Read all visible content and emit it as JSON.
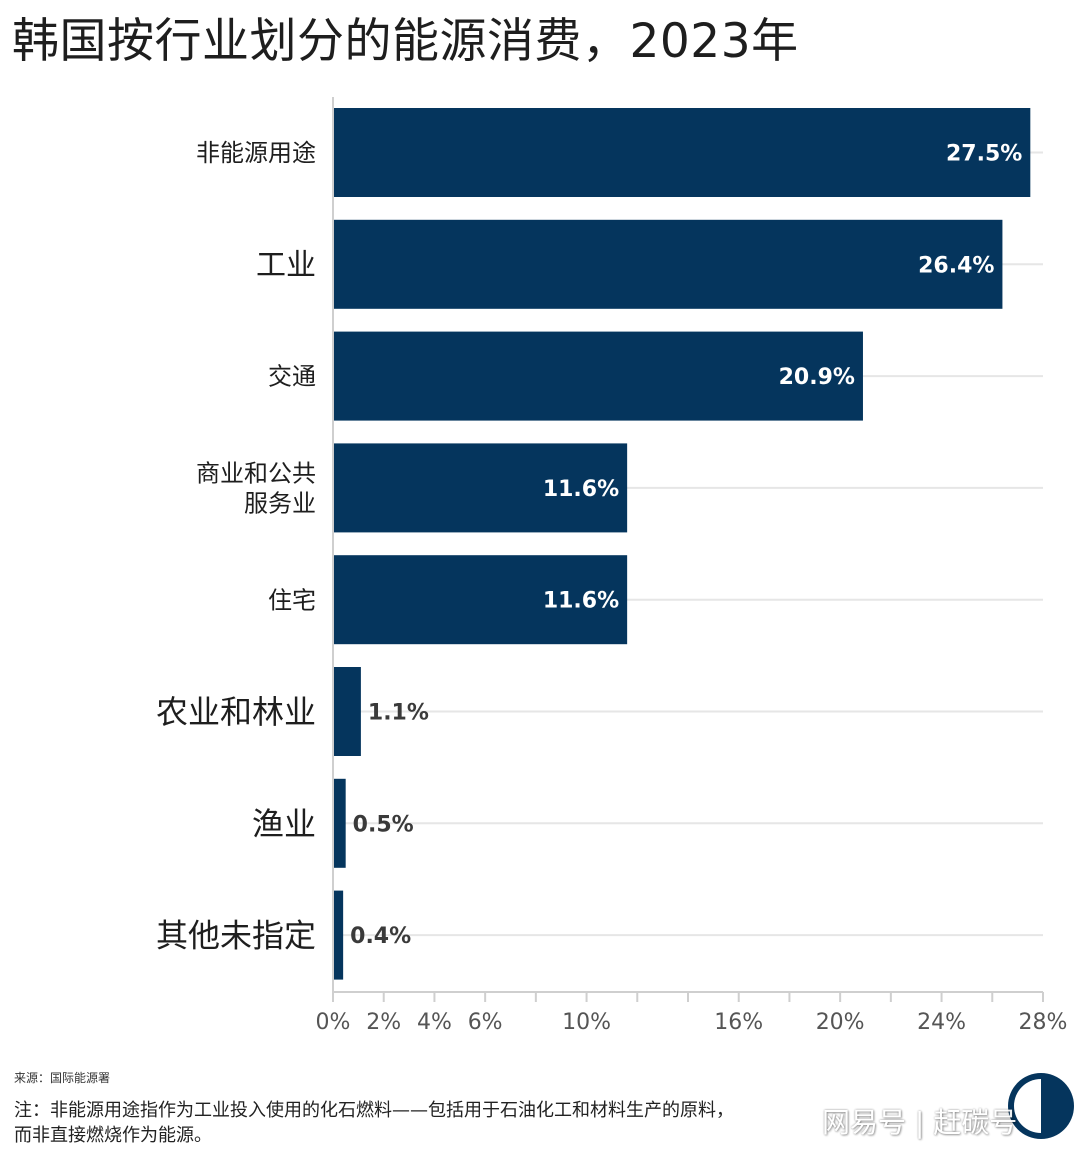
{
  "colors": {
    "bar": "#05355d",
    "grid": "#e6e6e6",
    "axis": "#cfcfcf",
    "tick_text": "#555555"
  },
  "chart_data": {
    "type": "bar",
    "orientation": "horizontal",
    "title": "韩国按行业划分的能源消费，2023年",
    "categories": [
      [
        "非能源用途"
      ],
      [
        "工业"
      ],
      [
        "交通"
      ],
      [
        "商业和公共",
        "服务业"
      ],
      [
        "住宅"
      ],
      [
        "农业和林业"
      ],
      [
        "渔业"
      ],
      [
        "其他未指定"
      ]
    ],
    "values": [
      27.5,
      26.4,
      20.9,
      11.6,
      11.6,
      1.1,
      0.5,
      0.4
    ],
    "data_labels": [
      "27.5%",
      "26.4%",
      "20.9%",
      "11.6%",
      "11.6%",
      "1.1%",
      "0.5%",
      "0.4%"
    ],
    "xlim": [
      0,
      28
    ],
    "x_ticks": [
      0,
      2,
      4,
      6,
      8,
      10,
      12,
      14,
      16,
      18,
      20,
      22,
      24,
      26,
      28
    ],
    "x_tick_labels": [
      "0%",
      "2%",
      "4%",
      "6%",
      "",
      "10%",
      "",
      "",
      "16%",
      "",
      "20%",
      "",
      "24%",
      "",
      "28%"
    ],
    "xlabel": "",
    "ylabel": ""
  },
  "footer": {
    "source": "来源：国际能源署",
    "note_line1": "注：非能源用途指作为工业投入使用的化石燃料——包括用于石油化工和材料生产的原料，",
    "note_line2": "而非直接燃烧作为能源。",
    "watermark": "网易号 | 赶碳号"
  }
}
